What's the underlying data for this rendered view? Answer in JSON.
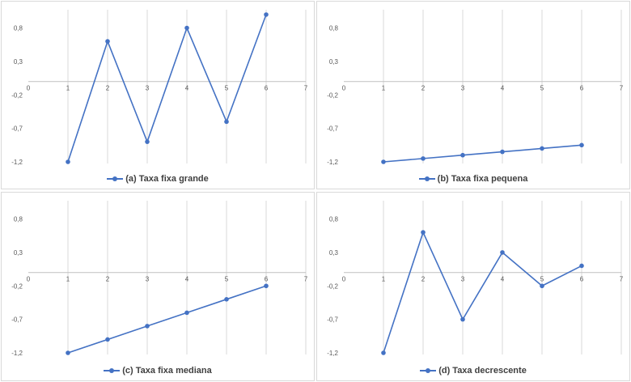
{
  "colors": {
    "series": "#4472c4",
    "grid": "#d9d9d9",
    "axis": "#bfbfbf",
    "text": "#595959"
  },
  "chart_data": [
    {
      "type": "line",
      "x": [
        1,
        2,
        3,
        4,
        5,
        6
      ],
      "series": [
        {
          "name": "(a) Taxa fixa grande",
          "values": [
            -1.2,
            0.6,
            -0.9,
            0.8,
            -0.6,
            1.0
          ]
        }
      ],
      "xlim": [
        0,
        7
      ],
      "ylim": [
        -1.2,
        1.0
      ],
      "xticks": [
        "0",
        "1",
        "2",
        "3",
        "4",
        "5",
        "6",
        "7"
      ],
      "yticks": [
        {
          "v": 0.8,
          "label": "0,8"
        },
        {
          "v": 0.3,
          "label": "0,3"
        },
        {
          "v": -0.2,
          "label": "-0,2"
        },
        {
          "v": -0.7,
          "label": "-0,7"
        },
        {
          "v": -1.2,
          "label": "-1,2"
        }
      ],
      "grid": "vertical",
      "legend": "bottom"
    },
    {
      "type": "line",
      "x": [
        1,
        2,
        3,
        4,
        5,
        6
      ],
      "series": [
        {
          "name": "(b) Taxa fixa pequena",
          "values": [
            -1.2,
            -1.15,
            -1.1,
            -1.05,
            -1.0,
            -0.95
          ]
        }
      ],
      "xlim": [
        0,
        7
      ],
      "ylim": [
        -1.2,
        1.0
      ],
      "xticks": [
        "0",
        "1",
        "2",
        "3",
        "4",
        "5",
        "6",
        "7"
      ],
      "yticks": [
        {
          "v": 0.8,
          "label": "0,8"
        },
        {
          "v": 0.3,
          "label": "0,3"
        },
        {
          "v": -0.2,
          "label": "-0,2"
        },
        {
          "v": -0.7,
          "label": "-0,7"
        },
        {
          "v": -1.2,
          "label": "-1,2"
        }
      ],
      "grid": "vertical",
      "legend": "bottom"
    },
    {
      "type": "line",
      "x": [
        1,
        2,
        3,
        4,
        5,
        6
      ],
      "series": [
        {
          "name": "(c) Taxa fixa mediana",
          "values": [
            -1.2,
            -1.0,
            -0.8,
            -0.6,
            -0.4,
            -0.2
          ]
        }
      ],
      "xlim": [
        0,
        7
      ],
      "ylim": [
        -1.2,
        1.0
      ],
      "xticks": [
        "0",
        "1",
        "2",
        "3",
        "4",
        "5",
        "6",
        "7"
      ],
      "yticks": [
        {
          "v": 0.8,
          "label": "0,8"
        },
        {
          "v": 0.3,
          "label": "0,3"
        },
        {
          "v": -0.2,
          "label": "-0,2"
        },
        {
          "v": -0.7,
          "label": "-0,7"
        },
        {
          "v": -1.2,
          "label": "-1,2"
        }
      ],
      "grid": "vertical",
      "legend": "bottom"
    },
    {
      "type": "line",
      "x": [
        1,
        2,
        3,
        4,
        5,
        6
      ],
      "series": [
        {
          "name": "(d) Taxa decrescente",
          "values": [
            -1.2,
            0.6,
            -0.7,
            0.3,
            -0.2,
            0.1
          ]
        }
      ],
      "xlim": [
        0,
        7
      ],
      "ylim": [
        -1.2,
        1.0
      ],
      "xticks": [
        "0",
        "1",
        "2",
        "3",
        "4",
        "5",
        "6",
        "7"
      ],
      "yticks": [
        {
          "v": 0.8,
          "label": "0,8"
        },
        {
          "v": 0.3,
          "label": "0,3"
        },
        {
          "v": -0.2,
          "label": "-0,2"
        },
        {
          "v": -0.7,
          "label": "-0,7"
        },
        {
          "v": -1.2,
          "label": "-1,2"
        }
      ],
      "grid": "vertical",
      "legend": "bottom"
    }
  ]
}
